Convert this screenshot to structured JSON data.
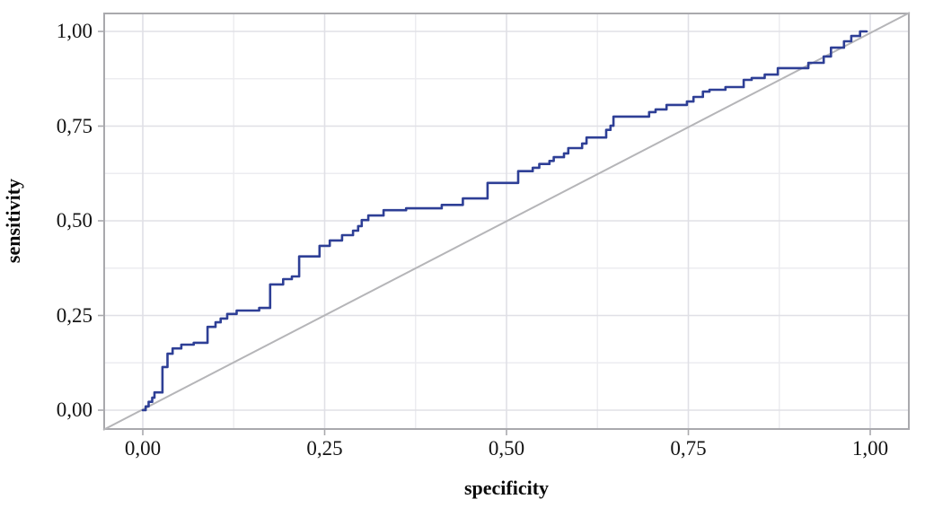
{
  "figure": {
    "background": "#ffffff",
    "curve_color": "#2e3f96",
    "diagonal_color": "#b5b5b8",
    "panel_border_color": "#a9a9ad",
    "grid_minor_color": "#ececf0",
    "grid_major_color": "#e0e0e6",
    "tick_color": "#a9a9ad",
    "text_color": "#141414"
  },
  "chart_data": {
    "type": "line",
    "subtype": "roc-step-curve",
    "title": "",
    "xlabel": "specificity",
    "ylabel": "sensitivity",
    "xlim": [
      -0.0543,
      1.0543
    ],
    "ylim": [
      -0.0521,
      1.0498
    ],
    "grid": {
      "visible": true,
      "minor_step": 0.125,
      "major_step": 0.25
    },
    "legend": "none",
    "x_ticks": [
      {
        "value": 0.0,
        "label": "0,00"
      },
      {
        "value": 0.25,
        "label": "0,25"
      },
      {
        "value": 0.5,
        "label": "0,50"
      },
      {
        "value": 0.75,
        "label": "0,75"
      },
      {
        "value": 1.0,
        "label": "1,00"
      }
    ],
    "y_ticks": [
      {
        "value": 0.0,
        "label": "0,00"
      },
      {
        "value": 0.25,
        "label": "0,25"
      },
      {
        "value": 0.5,
        "label": "0,50"
      },
      {
        "value": 0.75,
        "label": "0,75"
      },
      {
        "value": 1.0,
        "label": "1,00"
      }
    ],
    "series": [
      {
        "name": "roc-curve",
        "color": "#2e3f96",
        "points": [
          [
            0.0,
            0.0
          ],
          [
            0.004,
            0.0
          ],
          [
            0.004,
            0.01
          ],
          [
            0.008,
            0.01
          ],
          [
            0.008,
            0.022
          ],
          [
            0.013,
            0.022
          ],
          [
            0.013,
            0.033
          ],
          [
            0.016,
            0.033
          ],
          [
            0.016,
            0.047
          ],
          [
            0.027,
            0.047
          ],
          [
            0.027,
            0.114
          ],
          [
            0.034,
            0.114
          ],
          [
            0.034,
            0.149
          ],
          [
            0.041,
            0.149
          ],
          [
            0.041,
            0.163
          ],
          [
            0.053,
            0.163
          ],
          [
            0.053,
            0.173
          ],
          [
            0.07,
            0.173
          ],
          [
            0.07,
            0.178
          ],
          [
            0.089,
            0.178
          ],
          [
            0.089,
            0.22
          ],
          [
            0.1,
            0.22
          ],
          [
            0.1,
            0.232
          ],
          [
            0.107,
            0.232
          ],
          [
            0.107,
            0.242
          ],
          [
            0.116,
            0.242
          ],
          [
            0.116,
            0.254
          ],
          [
            0.129,
            0.254
          ],
          [
            0.129,
            0.263
          ],
          [
            0.16,
            0.263
          ],
          [
            0.16,
            0.27
          ],
          [
            0.175,
            0.27
          ],
          [
            0.175,
            0.332
          ],
          [
            0.193,
            0.332
          ],
          [
            0.193,
            0.346
          ],
          [
            0.205,
            0.346
          ],
          [
            0.205,
            0.353
          ],
          [
            0.215,
            0.353
          ],
          [
            0.215,
            0.406
          ],
          [
            0.243,
            0.406
          ],
          [
            0.243,
            0.434
          ],
          [
            0.257,
            0.434
          ],
          [
            0.257,
            0.448
          ],
          [
            0.274,
            0.448
          ],
          [
            0.274,
            0.462
          ],
          [
            0.289,
            0.462
          ],
          [
            0.289,
            0.474
          ],
          [
            0.296,
            0.474
          ],
          [
            0.296,
            0.486
          ],
          [
            0.301,
            0.486
          ],
          [
            0.301,
            0.502
          ],
          [
            0.31,
            0.502
          ],
          [
            0.31,
            0.514
          ],
          [
            0.331,
            0.514
          ],
          [
            0.331,
            0.528
          ],
          [
            0.362,
            0.528
          ],
          [
            0.362,
            0.533
          ],
          [
            0.411,
            0.533
          ],
          [
            0.411,
            0.542
          ],
          [
            0.44,
            0.542
          ],
          [
            0.44,
            0.559
          ],
          [
            0.474,
            0.559
          ],
          [
            0.474,
            0.6
          ],
          [
            0.516,
            0.6
          ],
          [
            0.516,
            0.631
          ],
          [
            0.536,
            0.631
          ],
          [
            0.536,
            0.64
          ],
          [
            0.545,
            0.64
          ],
          [
            0.545,
            0.65
          ],
          [
            0.559,
            0.65
          ],
          [
            0.559,
            0.658
          ],
          [
            0.565,
            0.658
          ],
          [
            0.565,
            0.668
          ],
          [
            0.579,
            0.668
          ],
          [
            0.579,
            0.678
          ],
          [
            0.585,
            0.678
          ],
          [
            0.585,
            0.692
          ],
          [
            0.604,
            0.692
          ],
          [
            0.604,
            0.704
          ],
          [
            0.61,
            0.704
          ],
          [
            0.61,
            0.72
          ],
          [
            0.637,
            0.72
          ],
          [
            0.637,
            0.74
          ],
          [
            0.643,
            0.74
          ],
          [
            0.643,
            0.751
          ],
          [
            0.647,
            0.751
          ],
          [
            0.647,
            0.775
          ],
          [
            0.696,
            0.775
          ],
          [
            0.696,
            0.787
          ],
          [
            0.705,
            0.787
          ],
          [
            0.705,
            0.794
          ],
          [
            0.72,
            0.794
          ],
          [
            0.72,
            0.806
          ],
          [
            0.748,
            0.806
          ],
          [
            0.748,
            0.815
          ],
          [
            0.757,
            0.815
          ],
          [
            0.757,
            0.827
          ],
          [
            0.77,
            0.827
          ],
          [
            0.77,
            0.841
          ],
          [
            0.779,
            0.841
          ],
          [
            0.779,
            0.846
          ],
          [
            0.801,
            0.846
          ],
          [
            0.801,
            0.853
          ],
          [
            0.826,
            0.853
          ],
          [
            0.826,
            0.872
          ],
          [
            0.837,
            0.872
          ],
          [
            0.837,
            0.877
          ],
          [
            0.855,
            0.877
          ],
          [
            0.855,
            0.886
          ],
          [
            0.873,
            0.886
          ],
          [
            0.873,
            0.903
          ],
          [
            0.915,
            0.903
          ],
          [
            0.915,
            0.917
          ],
          [
            0.936,
            0.917
          ],
          [
            0.936,
            0.934
          ],
          [
            0.946,
            0.934
          ],
          [
            0.946,
            0.957
          ],
          [
            0.964,
            0.957
          ],
          [
            0.964,
            0.974
          ],
          [
            0.974,
            0.974
          ],
          [
            0.974,
            0.988
          ],
          [
            0.986,
            0.988
          ],
          [
            0.986,
            1.0
          ],
          [
            0.995,
            1.0
          ]
        ]
      },
      {
        "name": "reference-diagonal",
        "color": "#b5b5b8",
        "note": "chance line drawn corner-to-corner across the whole panel",
        "points": [
          [
            -0.0543,
            -0.0521
          ],
          [
            1.0543,
            1.0498
          ]
        ]
      }
    ]
  }
}
